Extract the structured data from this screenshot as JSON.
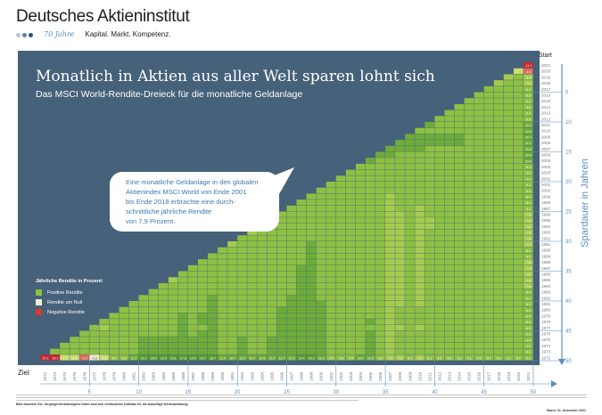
{
  "header": {
    "org_name": "Deutsches Aktieninstitut",
    "anniversary": "70 Jahre",
    "claim": "Kapital. Markt. Kompetenz.",
    "logo_dot_colors": [
      "#b8c4d0",
      "#5b7fa6",
      "#2f4f73"
    ]
  },
  "colors": {
    "panel": "#46617a",
    "positive": "#8dc043",
    "neutral": "#f3efd2",
    "negative": "#d73b2f",
    "axis": "#5b8ec0"
  },
  "chart_data": {
    "type": "heatmap",
    "title": "Monatlich in Aktien aus aller Welt sparen lohnt sich",
    "subtitle": "Das MSCI World-Rendite-Dreieck für die monatliche Geldanlage",
    "xlabel": "Ziel",
    "start_label": "Start",
    "ylabel": "Spardauer in Jahren",
    "start_years": [
      2021,
      2020,
      2019,
      2018,
      2017,
      2016,
      2015,
      2014,
      2013,
      2012,
      2011,
      2010,
      2009,
      2008,
      2007,
      2006,
      2005,
      2004,
      2003,
      2002,
      2001,
      2000,
      1999,
      1998,
      1997,
      1996,
      1995,
      1994,
      1993,
      1992,
      1991,
      1990,
      1989,
      1988,
      1987,
      1986,
      1985,
      1984,
      1983,
      1982,
      1981,
      1980,
      1979,
      1978,
      1977,
      1976,
      1975,
      1974,
      1973,
      1972
    ],
    "end_years": [
      1972,
      1973,
      1974,
      1975,
      1976,
      1977,
      1978,
      1979,
      1980,
      1981,
      1982,
      1983,
      1984,
      1985,
      1986,
      1987,
      1988,
      1989,
      1990,
      1991,
      1992,
      1993,
      1994,
      1995,
      1996,
      1997,
      1998,
      1999,
      2000,
      2001,
      2002,
      2003,
      2004,
      2005,
      2006,
      2007,
      2008,
      2009,
      2010,
      2011,
      2012,
      2013,
      2014,
      2015,
      2016,
      2017,
      2018,
      2019,
      2020,
      2021
    ],
    "duration_ticks": [
      5,
      10,
      15,
      20,
      25,
      30,
      35,
      40,
      45,
      50
    ],
    "returns_end_2021_by_start": [
      -11.2,
      -4.0,
      6.4,
      7.4,
      8.1,
      8.3,
      9.0,
      9.0,
      9.4,
      9.4,
      10.2,
      10.0,
      10.7,
      11.1,
      10.9,
      10.4,
      10.0,
      9.1,
      9.3,
      9.4,
      9.1,
      8.8,
      8.4,
      8.4,
      8.1,
      7.9,
      7.8,
      7.8,
      7.9,
      7.9,
      7.9,
      8.0,
      8.0,
      7.8,
      7.9,
      7.8,
      7.8,
      7.9,
      8.0,
      8.1,
      8.2,
      8.4,
      8.6,
      8.6,
      8.2,
      8.5,
      9.0,
      9.0,
      9.1,
      9.1
    ],
    "returns_start_1972_by_end": [
      -15.1,
      -30.7,
      4.1,
      3.4,
      -1.2,
      -0.3,
      1.3,
      9.0,
      9.8,
      11.2,
      15.1,
      16.0,
      15.4,
      15.1,
      17.8,
      13.0,
      14.7,
      18.7,
      11.4,
      10.7,
      12.0,
      10.0,
      10.8,
      11.5,
      12.7,
      12.9,
      14.4,
      15.2,
      11.9,
      9.4,
      9.5,
      9.4,
      10.1,
      10.8,
      9.3,
      7.2,
      7.9,
      8.3,
      7.9,
      8.1,
      8.6,
      8.9,
      9.2,
      9.1,
      9.0,
      8.7,
      9.3,
      9.1,
      9.7,
      9.1
    ],
    "legend": {
      "title": "Jährliche Rendite in Prozent:",
      "items": [
        "Positive Rendite",
        "Rendite um Null",
        "Negative Rendite"
      ]
    }
  },
  "callout": {
    "lines": [
      "Eine monatliche Geldanlage in den globalen",
      "Aktienindex MSCI World von Ende 2001",
      "bis Ende 2018 erbrachte eine durch-",
      "schnittliche jährliche Rendite",
      "von 7,9 Prozent."
    ]
  },
  "footer": {
    "disclaimer_bold": "Bitte beachten Sie: Vergangenheitsbezogene Daten sind kein verlässlicher Indikator für die zukünftige Wertentwicklung.",
    "stand": "Stand: 31. Dezember 2021"
  }
}
